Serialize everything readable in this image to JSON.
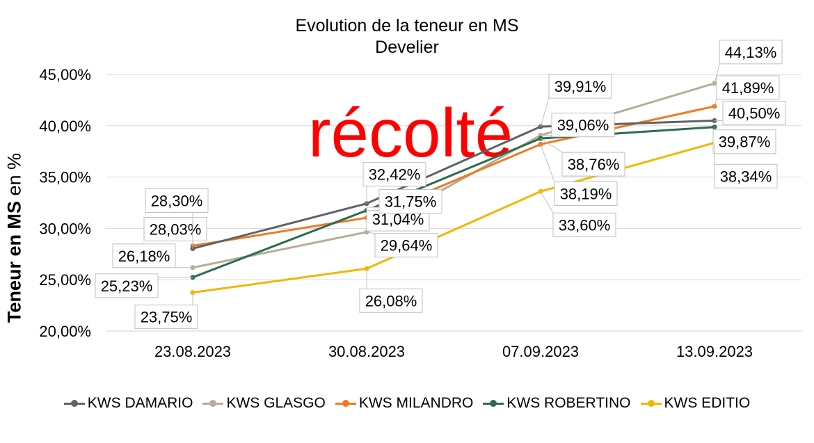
{
  "chart_data": {
    "type": "line",
    "title": "Evolution de la teneur en MS",
    "subtitle": "Develier",
    "ylabel_bold": "Teneur en MS",
    "ylabel_rest": " en %",
    "xlabel": "",
    "categories": [
      "23.08.2023",
      "30.08.2023",
      "07.09.2023",
      "13.09.2023"
    ],
    "ylim": [
      20,
      45
    ],
    "yticks": [
      "20,00%",
      "25,00%",
      "30,00%",
      "35,00%",
      "40,00%",
      "45,00%"
    ],
    "grid": true,
    "legend_position": "bottom",
    "annotation": "récolté",
    "annotation_color": "#ff0000",
    "series": [
      {
        "name": "KWS DAMARIO",
        "color": "#5f6368",
        "values": [
          28.03,
          32.42,
          39.91,
          40.5
        ],
        "labels": [
          "28,03%",
          "32,42%",
          "39,91%",
          "40,50%"
        ]
      },
      {
        "name": "KWS GLASGO",
        "color": "#b4ad99",
        "values": [
          26.18,
          29.64,
          39.06,
          44.13
        ],
        "labels": [
          "26,18%",
          "29,64%",
          "39,06%",
          "44,13%"
        ]
      },
      {
        "name": "KWS MILANDRO",
        "color": "#f07a22",
        "values": [
          28.3,
          31.04,
          38.19,
          41.89
        ],
        "labels": [
          "28,30%",
          "31,04%",
          "38,19%",
          "41,89%"
        ]
      },
      {
        "name": "KWS ROBERTINO",
        "color": "#2e6b4c",
        "values": [
          25.23,
          31.75,
          38.76,
          39.87
        ],
        "labels": [
          "25,23%",
          "31,75%",
          "38,76%",
          "39,87%"
        ]
      },
      {
        "name": "KWS EDITIO",
        "color": "#f2b705",
        "values": [
          23.75,
          26.08,
          33.6,
          38.34
        ],
        "labels": [
          "23,75%",
          "26,08%",
          "33,60%",
          "38,34%"
        ]
      }
    ]
  }
}
